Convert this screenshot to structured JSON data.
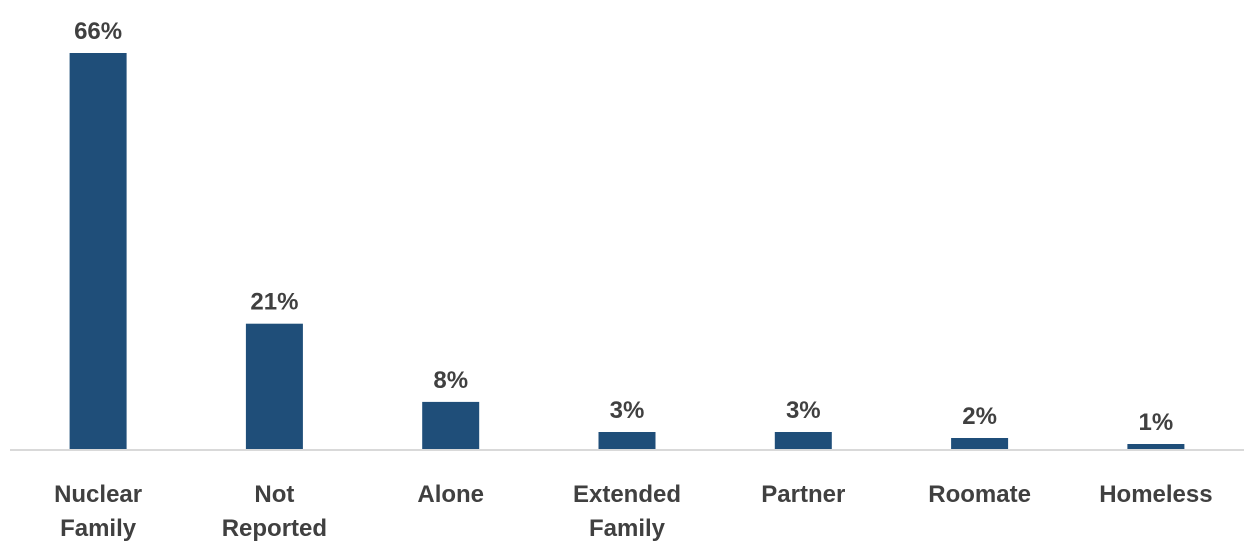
{
  "chart_data": {
    "type": "bar",
    "categories": [
      [
        "Nuclear",
        "Family"
      ],
      [
        "Not",
        "Reported"
      ],
      [
        "Alone"
      ],
      [
        "Extended",
        "Family"
      ],
      [
        "Partner"
      ],
      [
        "Roomate"
      ],
      [
        "Homeless"
      ]
    ],
    "values": [
      66,
      21,
      8,
      3,
      3,
      2,
      1
    ],
    "data_labels": [
      "66%",
      "21%",
      "8%",
      "3%",
      "3%",
      "2%",
      "1%"
    ],
    "title": "",
    "xlabel": "",
    "ylabel": "",
    "ylim": [
      0,
      66
    ],
    "grid": false,
    "legend": "none"
  },
  "colors": {
    "bar": "#1f4e79",
    "label_text": "#404040",
    "axis_line": "#d9d9d9",
    "background": "#ffffff"
  }
}
